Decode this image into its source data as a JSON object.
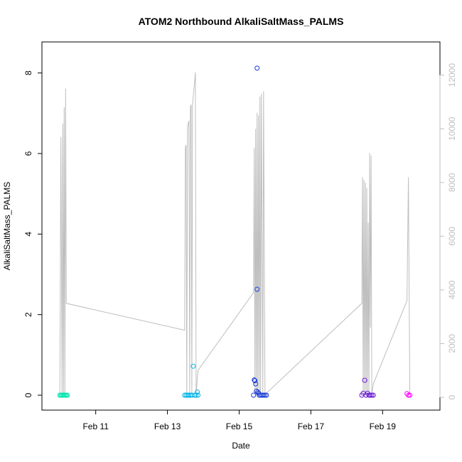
{
  "chart_data": {
    "type": "scatter",
    "title": "ATOM2 Northbound AlkaliSaltMass_PALMS",
    "xlabel": "Date",
    "ylabel": "AlkaliSaltMass_PALMS",
    "x_ticks": [
      "Feb 11",
      "Feb 13",
      "Feb 15",
      "Feb 17",
      "Feb 19"
    ],
    "x_tick_values": [
      11,
      13,
      15,
      17,
      19
    ],
    "xlim": [
      9.5,
      20.6
    ],
    "ylim": [
      0,
      8.4
    ],
    "y_ticks": [
      0,
      2,
      4,
      6,
      8
    ],
    "y2lim": [
      0,
      12600
    ],
    "y2_ticks": [
      0,
      2000,
      4000,
      6000,
      8000,
      10000,
      12000
    ],
    "grid": false,
    "colors": {
      "altitude_line": "#bebebe",
      "flight1": "#00e5b0",
      "flight2": "#00b4e6",
      "flight3": "#1a3cd6",
      "flight4": "#6a1ad6",
      "flight5": "#ff00ff",
      "axis": "#000000",
      "right_axis": "#bfbfbf"
    },
    "series": [
      {
        "color": "#00e5b0",
        "points": [
          [
            10.0,
            0.0
          ],
          [
            10.03,
            0.0
          ],
          [
            10.06,
            0.0
          ],
          [
            10.09,
            0.0
          ],
          [
            10.12,
            0.0
          ],
          [
            10.15,
            0.0
          ],
          [
            10.18,
            0.0
          ],
          [
            10.21,
            0.0
          ]
        ]
      },
      {
        "color": "#00b4e6",
        "points": [
          [
            13.48,
            0.0
          ],
          [
            13.52,
            0.0
          ],
          [
            13.56,
            0.0
          ],
          [
            13.6,
            0.0
          ],
          [
            13.64,
            0.0
          ],
          [
            13.68,
            0.0
          ],
          [
            13.72,
            0.72
          ],
          [
            13.76,
            0.0
          ],
          [
            13.8,
            0.0
          ],
          [
            13.83,
            0.08
          ],
          [
            13.85,
            0.0
          ]
        ]
      },
      {
        "color": "#1a3cd6",
        "points": [
          [
            15.4,
            0.0
          ],
          [
            15.42,
            0.38
          ],
          [
            15.44,
            0.36
          ],
          [
            15.46,
            0.28
          ],
          [
            15.48,
            0.1
          ],
          [
            15.5,
            8.12
          ],
          [
            15.5,
            2.63
          ],
          [
            15.52,
            0.08
          ],
          [
            15.54,
            0.05
          ],
          [
            15.56,
            0.0
          ],
          [
            15.6,
            0.0
          ],
          [
            15.64,
            0.0
          ],
          [
            15.68,
            0.0
          ],
          [
            15.72,
            0.0
          ],
          [
            15.76,
            0.0
          ]
        ]
      },
      {
        "color": "#6a1ad6",
        "points": [
          [
            18.42,
            0.0
          ],
          [
            18.46,
            0.05
          ],
          [
            18.5,
            0.37
          ],
          [
            18.54,
            0.0
          ],
          [
            18.58,
            0.05
          ],
          [
            18.62,
            0.0
          ],
          [
            18.66,
            0.0
          ],
          [
            18.7,
            0.0
          ],
          [
            18.74,
            0.0
          ]
        ]
      },
      {
        "color": "#ff00ff",
        "points": [
          [
            19.68,
            0.04
          ],
          [
            19.72,
            0.0
          ],
          [
            19.76,
            0.0
          ]
        ]
      }
    ],
    "altitude_line": [
      [
        10.0,
        100
      ],
      [
        10.03,
        9700
      ],
      [
        10.06,
        100
      ],
      [
        10.08,
        10200
      ],
      [
        10.1,
        100
      ],
      [
        10.12,
        10800
      ],
      [
        10.14,
        100
      ],
      [
        10.16,
        11500
      ],
      [
        10.18,
        3500
      ],
      [
        13.48,
        2500
      ],
      [
        13.5,
        9300
      ],
      [
        13.52,
        9400
      ],
      [
        13.54,
        100
      ],
      [
        13.56,
        10000
      ],
      [
        13.58,
        10200
      ],
      [
        13.6,
        10300
      ],
      [
        13.62,
        100
      ],
      [
        13.64,
        10800
      ],
      [
        13.66,
        10900
      ],
      [
        13.68,
        100
      ],
      [
        13.7,
        10900
      ],
      [
        13.74,
        11500
      ],
      [
        13.78,
        12100
      ],
      [
        13.8,
        100
      ],
      [
        13.85,
        1000
      ],
      [
        15.4,
        3900
      ],
      [
        15.42,
        9300
      ],
      [
        15.44,
        100
      ],
      [
        15.46,
        10000
      ],
      [
        15.48,
        100
      ],
      [
        15.5,
        10600
      ],
      [
        15.52,
        100
      ],
      [
        15.54,
        10500
      ],
      [
        15.56,
        100
      ],
      [
        15.58,
        11200
      ],
      [
        15.6,
        100
      ],
      [
        15.62,
        11300
      ],
      [
        15.66,
        100
      ],
      [
        15.68,
        11400
      ],
      [
        15.72,
        100
      ],
      [
        18.42,
        3500
      ],
      [
        18.44,
        8200
      ],
      [
        18.46,
        100
      ],
      [
        18.48,
        8100
      ],
      [
        18.5,
        100
      ],
      [
        18.52,
        8000
      ],
      [
        18.54,
        100
      ],
      [
        18.56,
        7800
      ],
      [
        18.58,
        100
      ],
      [
        18.6,
        6500
      ],
      [
        18.62,
        100
      ],
      [
        18.64,
        9100
      ],
      [
        18.66,
        2600
      ],
      [
        18.68,
        9000
      ],
      [
        18.7,
        100
      ],
      [
        18.74,
        500
      ],
      [
        19.68,
        3600
      ],
      [
        19.72,
        8200
      ],
      [
        19.76,
        100
      ]
    ]
  }
}
